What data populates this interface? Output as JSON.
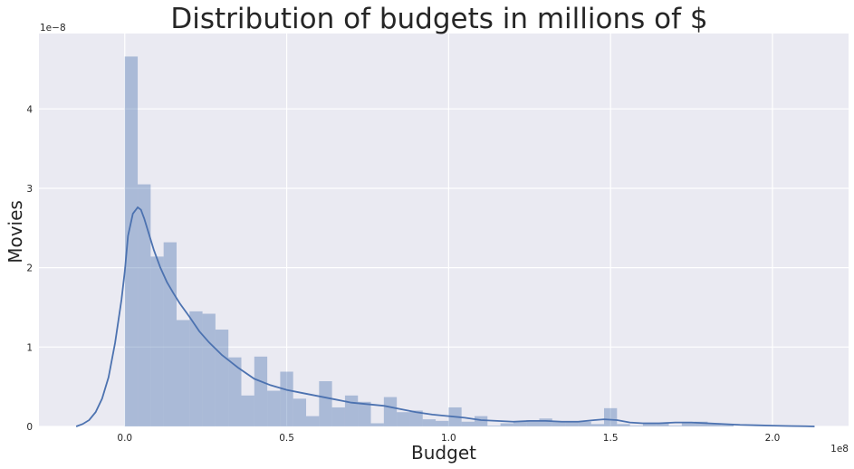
{
  "chart_data": {
    "type": "bar",
    "subtype": "histogram-with-kde",
    "title": "Distribution of budgets in millions of $",
    "xlabel": "Budget",
    "ylabel": "Movies",
    "x_offset_label": "1e8",
    "y_offset_label": "1e−8",
    "x_scale": 100000000,
    "y_scale": 1e-08,
    "xlim": [
      -0.265,
      2.235
    ],
    "ylim": [
      0,
      4.95
    ],
    "x_ticks": [
      0.0,
      0.5,
      1.0,
      1.5,
      2.0
    ],
    "x_tick_labels": [
      "0.0",
      "0.5",
      "1.0",
      "1.5",
      "2.0"
    ],
    "y_ticks": [
      0,
      1,
      2,
      3,
      4
    ],
    "y_tick_labels": [
      "0",
      "1",
      "2",
      "3",
      "4"
    ],
    "grid": true,
    "bin_start": 0.0,
    "bin_width": 0.04,
    "bars": [
      4.66,
      3.05,
      2.14,
      2.32,
      1.34,
      1.45,
      1.42,
      1.22,
      0.87,
      0.39,
      0.88,
      0.45,
      0.69,
      0.35,
      0.13,
      0.57,
      0.24,
      0.39,
      0.31,
      0.04,
      0.37,
      0.18,
      0.2,
      0.09,
      0.07,
      0.24,
      0.06,
      0.13,
      0.01,
      0.04,
      0.06,
      0.08,
      0.1,
      0.06,
      0.06,
      0.06,
      0.03,
      0.23,
      0.03,
      0.01,
      0.04,
      0.04,
      0.01,
      0.05,
      0.06,
      0.04,
      0.02
    ],
    "kde": {
      "x": [
        -0.15,
        -0.13,
        -0.11,
        -0.09,
        -0.07,
        -0.05,
        -0.03,
        -0.01,
        0.0,
        0.01,
        0.025,
        0.04,
        0.05,
        0.06,
        0.075,
        0.09,
        0.11,
        0.13,
        0.15,
        0.17,
        0.2,
        0.23,
        0.26,
        0.3,
        0.35,
        0.4,
        0.45,
        0.5,
        0.55,
        0.6,
        0.65,
        0.7,
        0.75,
        0.8,
        0.85,
        0.9,
        0.95,
        1.0,
        1.05,
        1.1,
        1.15,
        1.2,
        1.25,
        1.3,
        1.35,
        1.4,
        1.45,
        1.48,
        1.52,
        1.56,
        1.6,
        1.65,
        1.7,
        1.75,
        1.8,
        1.85,
        1.9,
        1.95,
        2.0,
        2.05,
        2.1,
        2.13
      ],
      "y": [
        0.0,
        0.03,
        0.08,
        0.18,
        0.35,
        0.62,
        1.05,
        1.6,
        1.95,
        2.4,
        2.68,
        2.76,
        2.73,
        2.62,
        2.42,
        2.22,
        2.0,
        1.82,
        1.68,
        1.55,
        1.38,
        1.2,
        1.06,
        0.9,
        0.74,
        0.6,
        0.52,
        0.46,
        0.42,
        0.38,
        0.34,
        0.3,
        0.28,
        0.26,
        0.22,
        0.18,
        0.15,
        0.13,
        0.11,
        0.08,
        0.07,
        0.06,
        0.07,
        0.07,
        0.06,
        0.06,
        0.08,
        0.09,
        0.08,
        0.05,
        0.04,
        0.04,
        0.05,
        0.05,
        0.04,
        0.03,
        0.02,
        0.015,
        0.01,
        0.006,
        0.003,
        0.0
      ]
    },
    "colors": {
      "background": "#eaeaf2",
      "grid": "#ffffff",
      "bar": "#4c72b0",
      "bar_opacity": 0.4,
      "kde_line": "#4c72b0"
    }
  }
}
